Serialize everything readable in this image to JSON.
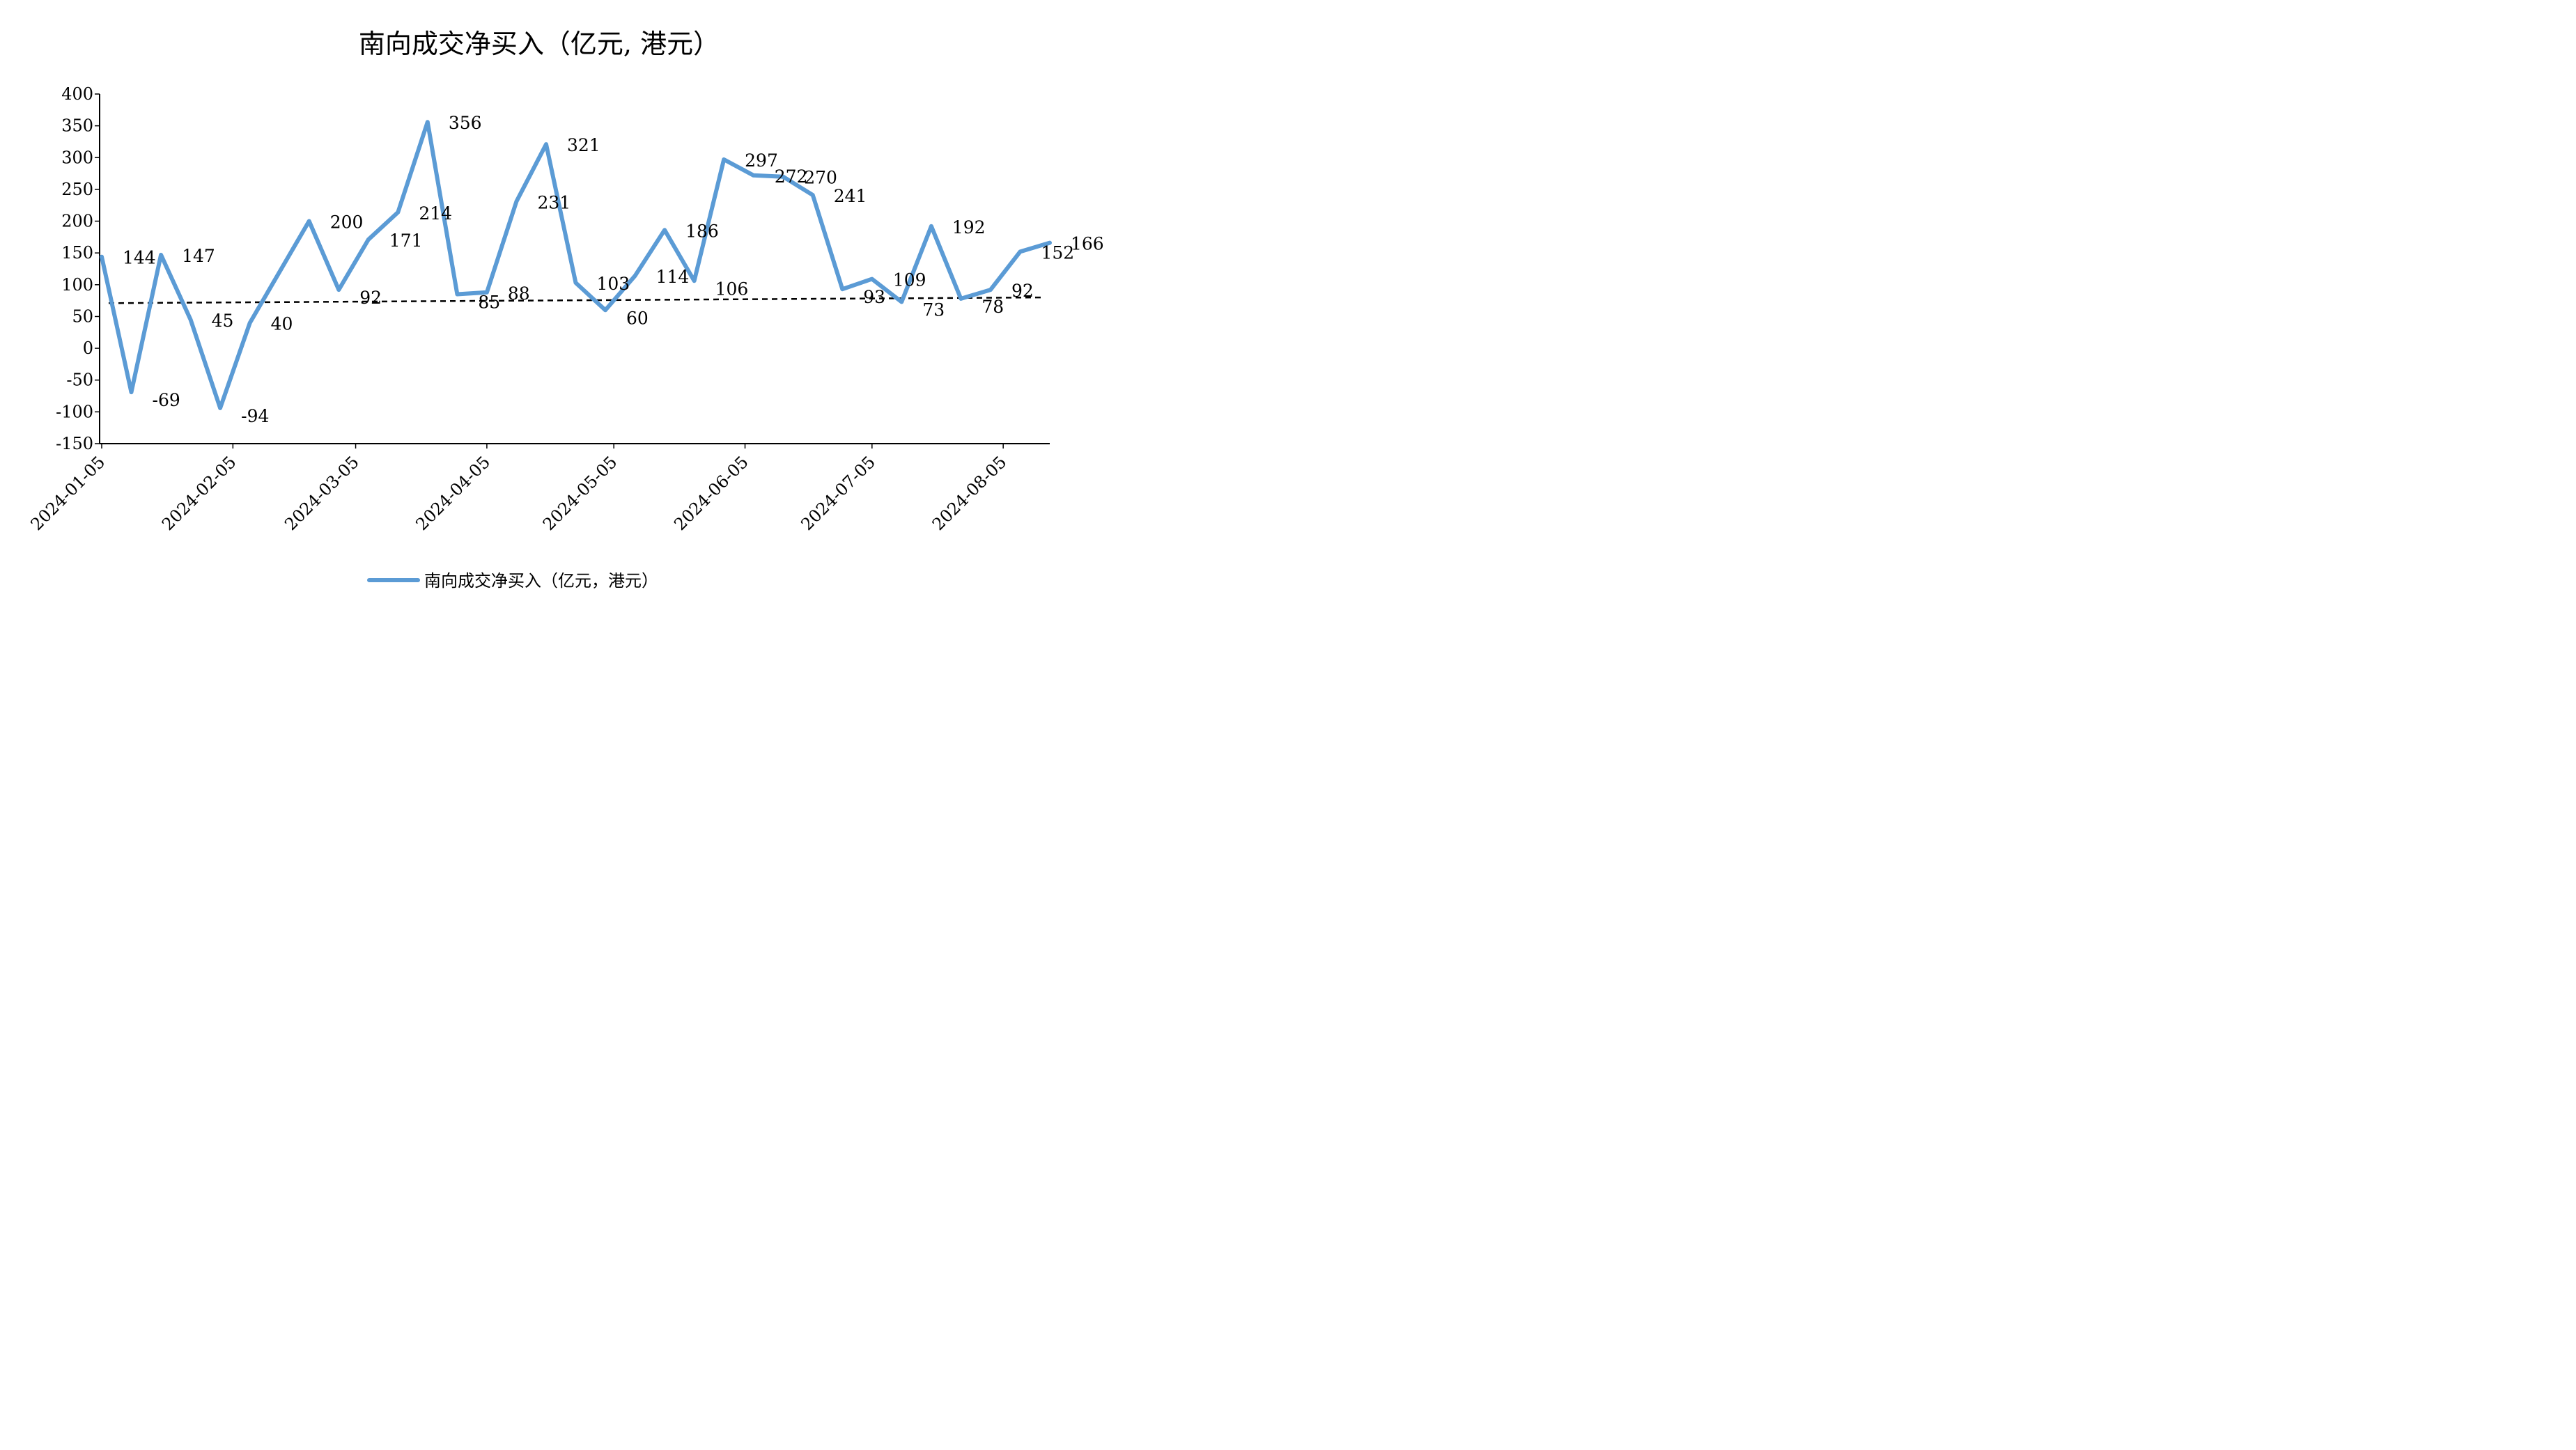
{
  "chart_data": {
    "type": "line",
    "title": "南向成交净买入（亿元, 港元）",
    "xlabel": "",
    "ylabel": "",
    "ylim": [
      -150,
      400
    ],
    "yticks": [
      400,
      350,
      300,
      250,
      200,
      150,
      100,
      50,
      0,
      -50,
      -100,
      -150
    ],
    "xlim": [
      "2024-01-05",
      "2024-08-16"
    ],
    "xticks": [
      "2024-01-05",
      "2024-02-05",
      "2024-03-05",
      "2024-04-05",
      "2024-05-05",
      "2024-06-05",
      "2024-07-05",
      "2024-08-05"
    ],
    "legend_position": "bottom",
    "color": "#5b9bd5",
    "series": [
      {
        "name": "南向成交净买入（亿元，港元）",
        "x": [
          "2024-01-05",
          "2024-01-12",
          "2024-01-19",
          "2024-01-26",
          "2024-02-02",
          "2024-02-09",
          "2024-02-23",
          "2024-03-01",
          "2024-03-08",
          "2024-03-15",
          "2024-03-22",
          "2024-03-29",
          "2024-04-05",
          "2024-04-12",
          "2024-04-19",
          "2024-04-26",
          "2024-05-03",
          "2024-05-10",
          "2024-05-17",
          "2024-05-24",
          "2024-05-31",
          "2024-06-07",
          "2024-06-14",
          "2024-06-21",
          "2024-06-28",
          "2024-07-05",
          "2024-07-12",
          "2024-07-19",
          "2024-07-26",
          "2024-08-02",
          "2024-08-09",
          "2024-08-16"
        ],
        "values": [
          144,
          -69,
          147,
          45,
          -94,
          40,
          200,
          92,
          171,
          214,
          356,
          85,
          88,
          231,
          321,
          103,
          60,
          114,
          186,
          106,
          297,
          272,
          270,
          241,
          93,
          109,
          73,
          192,
          78,
          92,
          152,
          166
        ],
        "labels": [
          "144",
          "-69",
          "147",
          "45",
          "-94",
          "40",
          "200",
          "92",
          "171",
          "214",
          "356",
          "85",
          "88",
          "231",
          "321",
          "103",
          "60",
          "114",
          "186",
          "106",
          "297",
          "272",
          "270",
          "241",
          "93",
          "109",
          "73",
          "192",
          "78",
          "92",
          "152",
          "166"
        ]
      }
    ],
    "trend_line": {
      "start": 71,
      "end": 80,
      "style": "dashed",
      "color": "#000000"
    }
  },
  "legend": {
    "label": "南向成交净买入（亿元，港元）"
  }
}
